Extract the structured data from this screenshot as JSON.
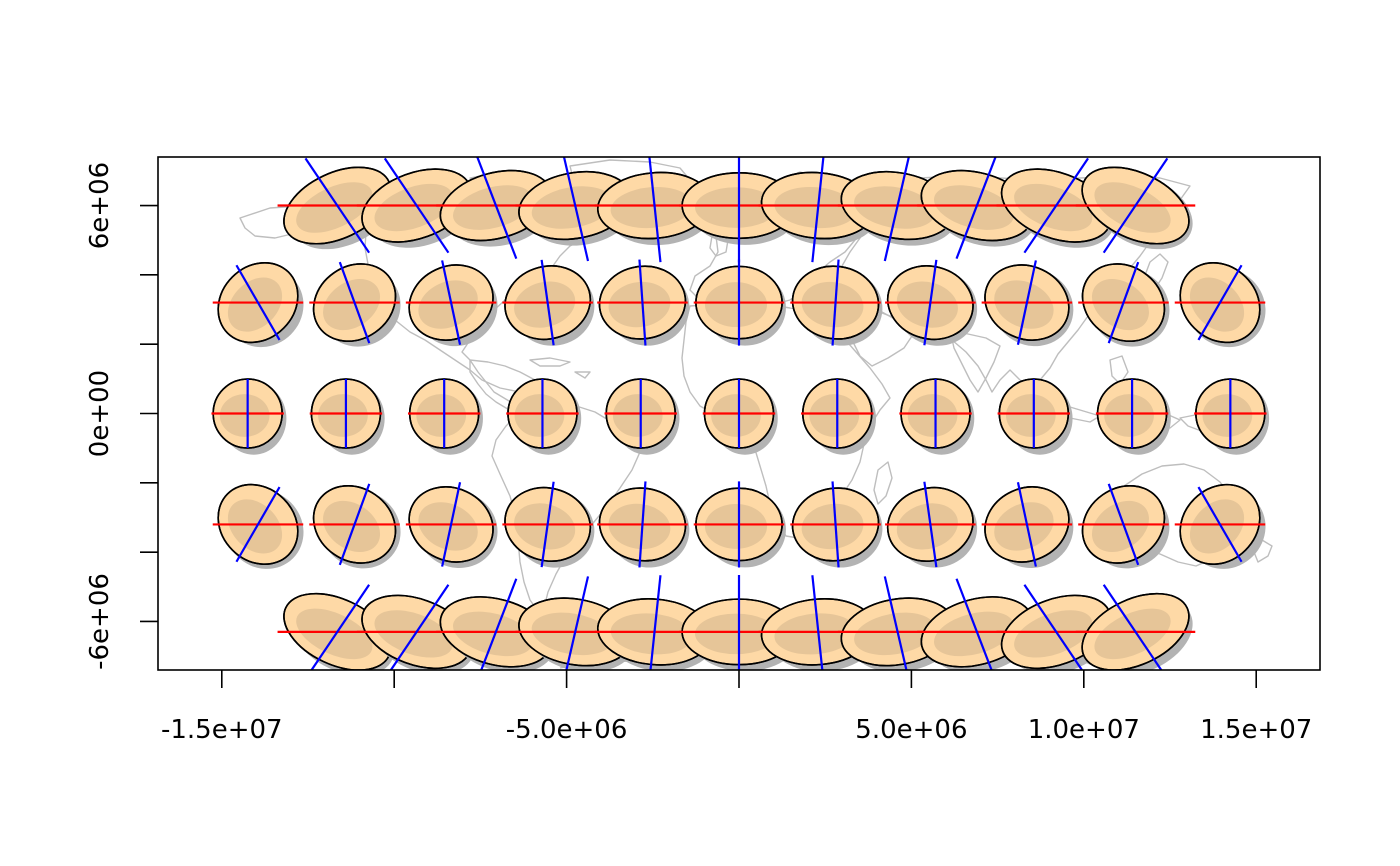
{
  "chart_data": {
    "type": "scatter",
    "title": "",
    "xlabel": "",
    "ylabel": "",
    "xlim": [
      -16850000,
      16850000
    ],
    "ylim": [
      -7400000,
      7400000
    ],
    "grid": false,
    "x_ticks": [
      {
        "value": -15000000,
        "label": "-1.5e+07"
      },
      {
        "value": -10000000,
        "label": ""
      },
      {
        "value": -5000000,
        "label": "-5.0e+06"
      },
      {
        "value": 0,
        "label": ""
      },
      {
        "value": 5000000,
        "label": "5.0e+06"
      },
      {
        "value": 10000000,
        "label": "1.0e+07"
      },
      {
        "value": 15000000,
        "label": "1.5e+07"
      }
    ],
    "y_ticks": [
      {
        "value": -6000000,
        "label": "-6e+06"
      },
      {
        "value": -4000000,
        "label": ""
      },
      {
        "value": -2000000,
        "label": ""
      },
      {
        "value": 0,
        "label": "0e+00"
      },
      {
        "value": 2000000,
        "label": ""
      },
      {
        "value": 4000000,
        "label": ""
      },
      {
        "value": 6000000,
        "label": "6e+06"
      }
    ],
    "series": [
      {
        "rows": [
          {
            "y": 6000000,
            "x": [
              -11650000,
              -9350000,
              -7050000,
              -4750000,
              -2450000,
              0,
              2300000,
              4600000,
              6900000,
              9200000,
              11500000
            ],
            "axis_angles_deg": [
              -34,
              -34,
              -21,
              -13,
              -6,
              0,
              6,
              13,
              21,
              34,
              34
            ],
            "ellipse_tilt_deg": [
              -25,
              -20,
              -15,
              -10,
              -5,
              0,
              5,
              10,
              15,
              20,
              25
            ]
          },
          {
            "y": 3200000,
            "x": [
              -13950000,
              -11150000,
              -8350000,
              -5550000,
              -2800000,
              0,
              2800000,
              5550000,
              8350000,
              11150000,
              13950000
            ],
            "axis_angles_deg": [
              -30,
              -20,
              -12,
              -8,
              -4,
              0,
              4,
              8,
              12,
              20,
              30
            ],
            "ellipse_tilt_deg": [
              -45,
              -35,
              -25,
              -15,
              -8,
              0,
              8,
              15,
              25,
              35,
              45
            ]
          },
          {
            "y": 0,
            "x": [
              -14250000,
              -11400000,
              -8550000,
              -5700000,
              -2850000,
              0,
              2850000,
              5700000,
              8550000,
              11400000,
              14250000
            ],
            "axis_angles_deg": [
              0,
              0,
              0,
              0,
              0,
              0,
              0,
              0,
              0,
              0,
              0
            ],
            "ellipse_tilt_deg": [
              0,
              0,
              0,
              0,
              0,
              0,
              0,
              0,
              0,
              0,
              0
            ]
          },
          {
            "y": -3200000,
            "x": [
              -13950000,
              -11150000,
              -8350000,
              -5550000,
              -2800000,
              0,
              2800000,
              5550000,
              8350000,
              11150000,
              13950000
            ],
            "axis_angles_deg": [
              30,
              20,
              12,
              8,
              4,
              0,
              -4,
              -8,
              -12,
              -20,
              -30
            ],
            "ellipse_tilt_deg": [
              45,
              35,
              25,
              15,
              8,
              0,
              -8,
              -15,
              -25,
              -35,
              -45
            ]
          },
          {
            "y": -6300000,
            "x": [
              -11650000,
              -9350000,
              -7050000,
              -4750000,
              -2450000,
              0,
              2300000,
              4600000,
              6900000,
              9200000,
              11500000
            ],
            "axis_angles_deg": [
              34,
              34,
              21,
              13,
              6,
              0,
              -6,
              -13,
              -21,
              -34,
              -34
            ],
            "ellipse_tilt_deg": [
              25,
              20,
              15,
              10,
              5,
              0,
              -5,
              -10,
              -15,
              -20,
              -25
            ]
          }
        ],
        "ellipse_rx_by_row": [
          1650000,
          1250000,
          1000000,
          1250000,
          1650000
        ],
        "ellipse_ry_by_row": [
          950000,
          1050000,
          1000000,
          1050000,
          950000
        ],
        "colors": {
          "shadow": "#b3b3b3",
          "fill": "#fed9a6",
          "inner": "#d2b48c",
          "outline": "#000000",
          "parallel": "#ff0000",
          "meridian": "#0000ff",
          "coastline": "#bebebe"
        }
      }
    ]
  }
}
